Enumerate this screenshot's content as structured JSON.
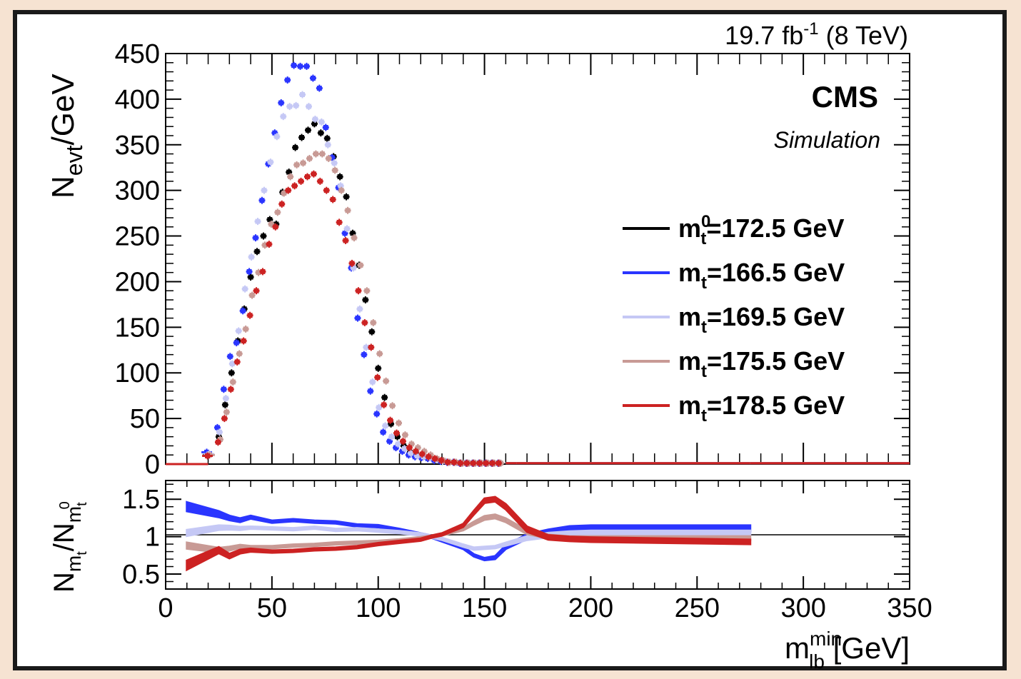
{
  "chart_data": {
    "type": "scatter",
    "lumi_label": {
      "value": "19.7 fb",
      "sup": "-1",
      "energy": " (8 TeV)"
    },
    "experiment": "CMS",
    "sublabel": "Simulation",
    "top_panel": {
      "ylabel": {
        "main": "N",
        "sub": "evt",
        "rest": "/GeV"
      },
      "ylim": [
        0,
        450
      ],
      "yticks": [
        "0",
        "50",
        "100",
        "150",
        "200",
        "250",
        "300",
        "350",
        "400",
        "450"
      ]
    },
    "ratio_panel": {
      "ylabel": {
        "n1": "N",
        "m1": "m",
        "t1": "t",
        "slash": "/N",
        "m2": "m",
        "t2": "t",
        "zero": "0"
      },
      "ylim": [
        0.3,
        1.75
      ],
      "yticks": [
        "0.5",
        "1",
        "1.5"
      ]
    },
    "xlim": [
      0,
      350
    ],
    "xticks": [
      "0",
      "50",
      "100",
      "150",
      "200",
      "250",
      "300",
      "350"
    ],
    "xlabel": {
      "m": "m",
      "sup": "min",
      "sub": "lb",
      "unit": " [GeV]"
    },
    "x_bins": [
      10,
      20,
      25,
      28,
      31,
      34,
      37,
      40,
      43,
      46,
      49,
      52,
      55,
      58,
      61,
      64,
      67,
      70,
      73,
      76,
      79,
      82,
      85,
      88,
      91,
      94,
      97,
      100,
      103,
      106,
      109,
      112,
      115,
      118,
      121,
      124,
      127,
      130,
      133,
      136,
      139,
      142,
      145,
      148,
      151,
      154,
      157,
      160,
      165,
      170,
      180,
      190,
      200,
      275
    ],
    "series": [
      {
        "name_main": "m",
        "name_sub": "t",
        "name_sup": "0",
        "name_rest": "=172.5 GeV",
        "color": "#000000",
        "values": [
          0,
          10,
          30,
          65,
          100,
          135,
          170,
          205,
          233,
          250,
          268,
          263,
          298,
          320,
          347,
          358,
          366,
          373,
          363,
          357,
          337,
          315,
          293,
          253,
          218,
          180,
          145,
          105,
          73,
          44,
          30,
          20,
          13,
          10,
          8,
          8,
          5,
          3,
          2,
          2,
          1,
          1,
          1,
          1,
          1,
          1,
          1,
          1,
          1,
          1,
          1,
          1,
          1,
          1
        ]
      },
      {
        "name_main": "m",
        "name_sub": "t",
        "name_rest": "=166.5 GeV",
        "color": "#2a35ff",
        "values": [
          0,
          13,
          40,
          82,
          118,
          133,
          168,
          211,
          248,
          289,
          329,
          363,
          396,
          421,
          437,
          436,
          436,
          423,
          412,
          369,
          336,
          303,
          253,
          215,
          160,
          120,
          80,
          55,
          35,
          25,
          18,
          14,
          10,
          8,
          7,
          6,
          4,
          3,
          2,
          2,
          1,
          1,
          1,
          1,
          1,
          1,
          1,
          1,
          1,
          1,
          1,
          1,
          1,
          1
        ]
      },
      {
        "name_main": "m",
        "name_sub": "t",
        "name_rest": "=169.5 GeV",
        "color": "#c5c8f5",
        "values": [
          0,
          11,
          35,
          72,
          110,
          146,
          192,
          227,
          266,
          300,
          331,
          359,
          381,
          392,
          393,
          405,
          392,
          378,
          375,
          350,
          330,
          305,
          258,
          215,
          170,
          128,
          90,
          62,
          42,
          30,
          22,
          17,
          12,
          9,
          8,
          7,
          5,
          3,
          2,
          2,
          1,
          1,
          1,
          1,
          1,
          1,
          1,
          1,
          1,
          1,
          1,
          1,
          1,
          1
        ]
      },
      {
        "name_main": "m",
        "name_sub": "t",
        "name_rest": "=175.5 GeV",
        "color": "#c89a95",
        "values": [
          0,
          10,
          27,
          57,
          90,
          121,
          148,
          185,
          210,
          240,
          263,
          276,
          297,
          315,
          328,
          330,
          335,
          340,
          340,
          335,
          322,
          300,
          278,
          248,
          218,
          190,
          155,
          121,
          91,
          64,
          45,
          32,
          22,
          18,
          14,
          10,
          6,
          4,
          2,
          2,
          1,
          1,
          1,
          1,
          1,
          1,
          1,
          1,
          1,
          1,
          1,
          1,
          1,
          1
        ]
      },
      {
        "name_main": "m",
        "name_sub": "t",
        "name_rest": "=178.5 GeV",
        "color": "#cc2222",
        "values": [
          0,
          9,
          24,
          50,
          82,
          112,
          135,
          163,
          190,
          211,
          241,
          260,
          285,
          300,
          305,
          310,
          315,
          318,
          310,
          300,
          290,
          265,
          245,
          220,
          190,
          155,
          128,
          95,
          65,
          48,
          34,
          25,
          18,
          14,
          11,
          8,
          6,
          4,
          2,
          2,
          1,
          1,
          1,
          1,
          1,
          1,
          1,
          1,
          1,
          1,
          1,
          1,
          1,
          1
        ]
      }
    ],
    "ratios": {
      "x": [
        10,
        25,
        30,
        35,
        40,
        50,
        60,
        70,
        80,
        90,
        100,
        110,
        120,
        125,
        130,
        140,
        145,
        150,
        155,
        160,
        170,
        180,
        190,
        200,
        275
      ],
      "series": [
        {
          "color": "#2a35ff",
          "values": [
            1.4,
            1.3,
            1.25,
            1.22,
            1.26,
            1.2,
            1.22,
            1.2,
            1.19,
            1.15,
            1.14,
            1.09,
            1.03,
            1.0,
            0.95,
            0.85,
            0.75,
            0.7,
            0.72,
            0.86,
            1.0,
            1.06,
            1.1,
            1.11,
            1.11
          ],
          "width": [
            0.12,
            0.08,
            0.06,
            0.05,
            0.04,
            0.03,
            0.03,
            0.03,
            0.03,
            0.03,
            0.03,
            0.03,
            0.03,
            0.03,
            0.03,
            0.03,
            0.03,
            0.03,
            0.04,
            0.05,
            0.06,
            0.07,
            0.08,
            0.08,
            0.08
          ]
        },
        {
          "color": "#c5c8f5",
          "values": [
            1.05,
            1.12,
            1.12,
            1.11,
            1.12,
            1.11,
            1.1,
            1.12,
            1.09,
            1.1,
            1.08,
            1.06,
            1.03,
            1.0,
            0.97,
            0.88,
            0.84,
            0.85,
            0.86,
            0.9,
            0.98,
            1.02,
            1.04,
            1.05,
            1.05
          ],
          "width": [
            0.08,
            0.06,
            0.05,
            0.04,
            0.03,
            0.03,
            0.03,
            0.03,
            0.03,
            0.03,
            0.03,
            0.03,
            0.03,
            0.03,
            0.03,
            0.03,
            0.03,
            0.03,
            0.03,
            0.04,
            0.05,
            0.06,
            0.06,
            0.06,
            0.06
          ]
        },
        {
          "color": "#c89a95",
          "values": [
            0.88,
            0.82,
            0.84,
            0.87,
            0.86,
            0.86,
            0.88,
            0.89,
            0.91,
            0.92,
            0.93,
            0.95,
            0.98,
            1.0,
            1.03,
            1.1,
            1.18,
            1.25,
            1.27,
            1.22,
            1.06,
            1.0,
            0.98,
            0.98,
            0.98
          ],
          "width": [
            0.08,
            0.06,
            0.05,
            0.04,
            0.03,
            0.03,
            0.03,
            0.03,
            0.03,
            0.03,
            0.03,
            0.03,
            0.03,
            0.03,
            0.03,
            0.03,
            0.04,
            0.05,
            0.05,
            0.05,
            0.05,
            0.05,
            0.05,
            0.05,
            0.05
          ]
        },
        {
          "color": "#cc2222",
          "values": [
            0.62,
            0.82,
            0.74,
            0.8,
            0.82,
            0.8,
            0.81,
            0.83,
            0.84,
            0.86,
            0.9,
            0.93,
            0.96,
            1.0,
            1.03,
            1.15,
            1.32,
            1.48,
            1.5,
            1.4,
            1.1,
            0.99,
            0.97,
            0.96,
            0.93
          ],
          "width": [
            0.12,
            0.08,
            0.06,
            0.05,
            0.04,
            0.03,
            0.03,
            0.03,
            0.03,
            0.03,
            0.03,
            0.03,
            0.03,
            0.03,
            0.03,
            0.04,
            0.05,
            0.06,
            0.06,
            0.07,
            0.07,
            0.06,
            0.06,
            0.06,
            0.06
          ]
        }
      ]
    },
    "legend_placement": "right",
    "grid": false
  }
}
